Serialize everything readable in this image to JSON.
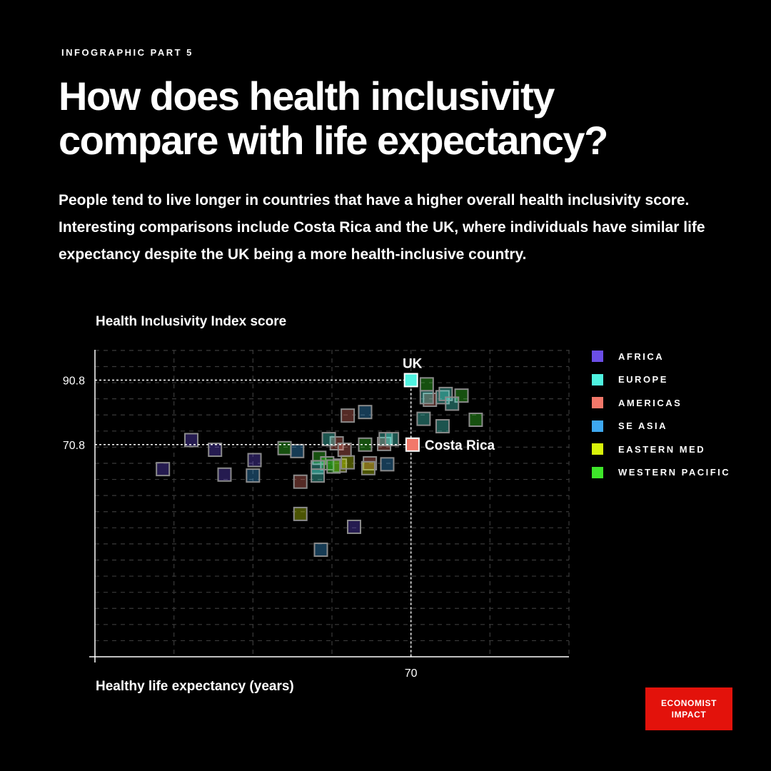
{
  "eyebrow": "INFOGRAPHIC PART 5",
  "headline": "How does health inclusivity compare with life expectancy?",
  "intro": "People tend to live longer in countries that have a higher overall health inclusivity score. Interesting comparisons include Costa Rica and the UK, where individuals have similar life expectancy despite the UK being a more health-inclusive country.",
  "brand": {
    "line1": "ECONOMIST",
    "line2": "IMPACT",
    "color": "#e3120b"
  },
  "chart_data": {
    "type": "scatter",
    "xlabel": "Healthy life expectancy (years)",
    "ylabel": "Health Inclusivity Index score",
    "x_ticks": [
      70
    ],
    "y_ticks": [
      70.8,
      90.8
    ],
    "xlim": [
      50,
      80
    ],
    "ylim": [
      5,
      100.2
    ],
    "grid": true,
    "legend_position": "right",
    "regions": [
      {
        "name": "AFRICA",
        "color": "#6b4ee6"
      },
      {
        "name": "EUROPE",
        "color": "#4ff2e0"
      },
      {
        "name": "AMERICAS",
        "color": "#f2786a"
      },
      {
        "name": "SE ASIA",
        "color": "#3ea8f0"
      },
      {
        "name": "EASTERN MED",
        "color": "#d8f20a"
      },
      {
        "name": "WESTERN PACIFIC",
        "color": "#3ee62a"
      }
    ],
    "highlights": [
      {
        "label": "UK",
        "region": "EUROPE",
        "x": 70.0,
        "y": 90.8
      },
      {
        "label": "Costa Rica",
        "region": "AMERICAS",
        "x": 70.1,
        "y": 70.8
      }
    ],
    "points": [
      {
        "region": "AFRICA",
        "x": 54.3,
        "y": 63.2
      },
      {
        "region": "AFRICA",
        "x": 56.1,
        "y": 72.2
      },
      {
        "region": "AFRICA",
        "x": 57.6,
        "y": 69.2
      },
      {
        "region": "AFRICA",
        "x": 58.2,
        "y": 61.5
      },
      {
        "region": "AFRICA",
        "x": 60.1,
        "y": 66.0
      },
      {
        "region": "AFRICA",
        "x": 66.4,
        "y": 45.3
      },
      {
        "region": "SE ASIA",
        "x": 60.0,
        "y": 61.2
      },
      {
        "region": "SE ASIA",
        "x": 62.8,
        "y": 68.8
      },
      {
        "region": "SE ASIA",
        "x": 64.3,
        "y": 38.2
      },
      {
        "region": "SE ASIA",
        "x": 68.5,
        "y": 64.7
      },
      {
        "region": "SE ASIA",
        "x": 67.1,
        "y": 80.9
      },
      {
        "region": "AMERICAS",
        "x": 63.0,
        "y": 59.3
      },
      {
        "region": "AMERICAS",
        "x": 65.3,
        "y": 71.2
      },
      {
        "region": "AMERICAS",
        "x": 65.8,
        "y": 69.2
      },
      {
        "region": "AMERICAS",
        "x": 66.0,
        "y": 79.8
      },
      {
        "region": "AMERICAS",
        "x": 67.4,
        "y": 65.0
      },
      {
        "region": "AMERICAS",
        "x": 68.3,
        "y": 71.0
      },
      {
        "region": "AMERICAS",
        "x": 71.2,
        "y": 84.7
      },
      {
        "region": "EASTERN MED",
        "x": 63.0,
        "y": 49.3
      },
      {
        "region": "EASTERN MED",
        "x": 65.5,
        "y": 64.3
      },
      {
        "region": "EASTERN MED",
        "x": 66.0,
        "y": 65.3
      },
      {
        "region": "EASTERN MED",
        "x": 67.3,
        "y": 63.5
      },
      {
        "region": "WESTERN PACIFIC",
        "x": 62.0,
        "y": 69.7
      },
      {
        "region": "WESTERN PACIFIC",
        "x": 64.2,
        "y": 66.7
      },
      {
        "region": "WESTERN PACIFIC",
        "x": 64.7,
        "y": 65.0
      },
      {
        "region": "WESTERN PACIFIC",
        "x": 65.1,
        "y": 64.0
      },
      {
        "region": "WESTERN PACIFIC",
        "x": 67.1,
        "y": 70.8
      },
      {
        "region": "WESTERN PACIFIC",
        "x": 71.0,
        "y": 89.5
      },
      {
        "region": "WESTERN PACIFIC",
        "x": 73.2,
        "y": 86.0
      },
      {
        "region": "WESTERN PACIFIC",
        "x": 74.1,
        "y": 78.5
      },
      {
        "region": "EUROPE",
        "x": 64.1,
        "y": 63.8
      },
      {
        "region": "EUROPE",
        "x": 64.1,
        "y": 61.2
      },
      {
        "region": "EUROPE",
        "x": 64.8,
        "y": 72.5
      },
      {
        "region": "EUROPE",
        "x": 68.4,
        "y": 72.5
      },
      {
        "region": "EUROPE",
        "x": 68.8,
        "y": 72.5
      },
      {
        "region": "EUROPE",
        "x": 71.0,
        "y": 85.5
      },
      {
        "region": "EUROPE",
        "x": 70.8,
        "y": 78.8
      },
      {
        "region": "EUROPE",
        "x": 72.0,
        "y": 85.5
      },
      {
        "region": "EUROPE",
        "x": 72.2,
        "y": 86.5
      },
      {
        "region": "EUROPE",
        "x": 72.6,
        "y": 83.5
      },
      {
        "region": "EUROPE",
        "x": 72.0,
        "y": 76.5
      }
    ]
  }
}
